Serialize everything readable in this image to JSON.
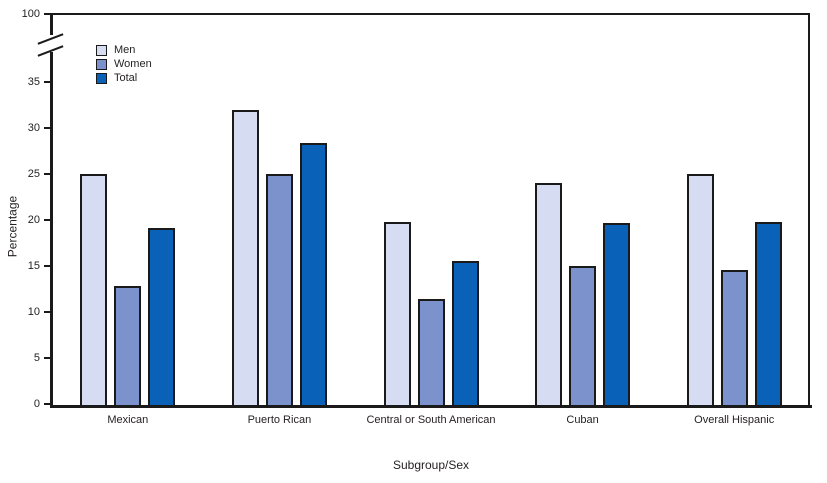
{
  "chart_data": {
    "type": "bar",
    "title": "",
    "xlabel": "Subgroup/Sex",
    "ylabel": "Percentage",
    "categories": [
      "Mexican",
      "Puerto Rican",
      "Central or South American",
      "Cuban",
      "Overall Hispanic"
    ],
    "series": [
      {
        "name": "Men",
        "color": "#d6dcf2",
        "values": [
          25.1,
          32.1,
          19.9,
          24.1,
          25.1
        ]
      },
      {
        "name": "Women",
        "color": "#7b92cd",
        "values": [
          12.9,
          25.1,
          11.5,
          15.1,
          14.7
        ]
      },
      {
        "name": "Total",
        "color": "#0a62b8",
        "values": [
          19.2,
          28.5,
          15.6,
          19.8,
          19.9
        ]
      }
    ],
    "y_ticks": [
      0,
      5,
      10,
      15,
      20,
      25,
      30,
      35
    ],
    "ylim": [
      0,
      35
    ],
    "axis_break": true,
    "y_break_top_label": "100",
    "legend_position": "top-left",
    "grid": false,
    "colors": {
      "axis": "#1a1a1a",
      "text": "#231f20",
      "background": "#ffffff"
    }
  }
}
